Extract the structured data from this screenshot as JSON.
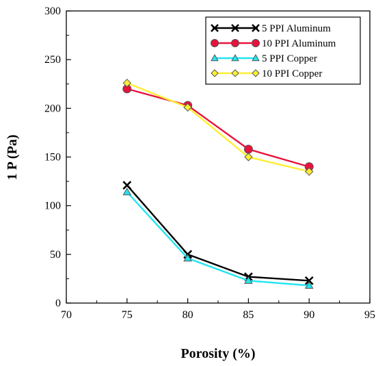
{
  "chart_data": {
    "type": "line",
    "title": "",
    "xlabel": "Porosity (%)",
    "ylabel": "1 P (Pa)",
    "xlim": [
      70,
      95
    ],
    "ylim": [
      0,
      300
    ],
    "xticks": [
      70,
      75,
      80,
      85,
      90,
      95
    ],
    "yticks": [
      0,
      50,
      100,
      150,
      200,
      250,
      300
    ],
    "grid": false,
    "legend_position": "top-right",
    "series": [
      {
        "name": "5 PPI Aluminum",
        "x": [
          75,
          80,
          85,
          90
        ],
        "values": [
          121,
          50,
          27,
          23
        ],
        "color": "#000000",
        "marker": "x-mark"
      },
      {
        "name": "10 PPI Aluminum",
        "x": [
          75,
          80,
          85,
          90
        ],
        "values": [
          220,
          203,
          158,
          140
        ],
        "color": "#e8123c",
        "marker": "circle",
        "marker_fill": "#e8123c"
      },
      {
        "name": "5 PPI Copper",
        "x": [
          75,
          80,
          85,
          90
        ],
        "values": [
          114,
          46,
          23,
          18
        ],
        "color": "#22e5f0",
        "marker": "triangle",
        "marker_fill": "#22e5f0"
      },
      {
        "name": "10 PPI Copper",
        "x": [
          75,
          80,
          85,
          90
        ],
        "values": [
          226,
          201,
          150,
          135
        ],
        "color": "#ffee33",
        "marker": "diamond",
        "marker_fill": "#ffee33"
      }
    ]
  }
}
